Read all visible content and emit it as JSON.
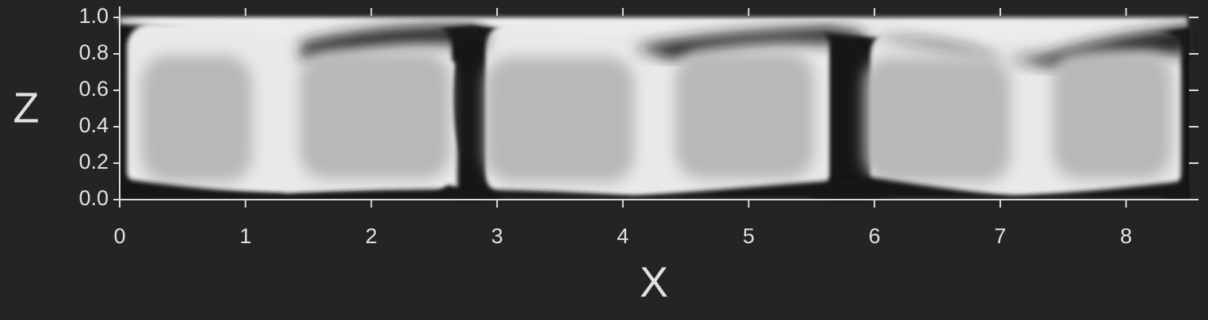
{
  "chart_data": {
    "type": "field",
    "xlabel": "X",
    "ylabel": "Z",
    "xlim": [
      0,
      8.5
    ],
    "ylim": [
      0,
      1
    ],
    "xticks": [
      0,
      1,
      2,
      3,
      4,
      5,
      6,
      7,
      8
    ],
    "yticks": [
      {
        "value": 0,
        "label": "0.0"
      },
      0.2,
      0.4,
      0.6,
      0.8,
      {
        "value": 1,
        "label": "1.0"
      }
    ]
  }
}
